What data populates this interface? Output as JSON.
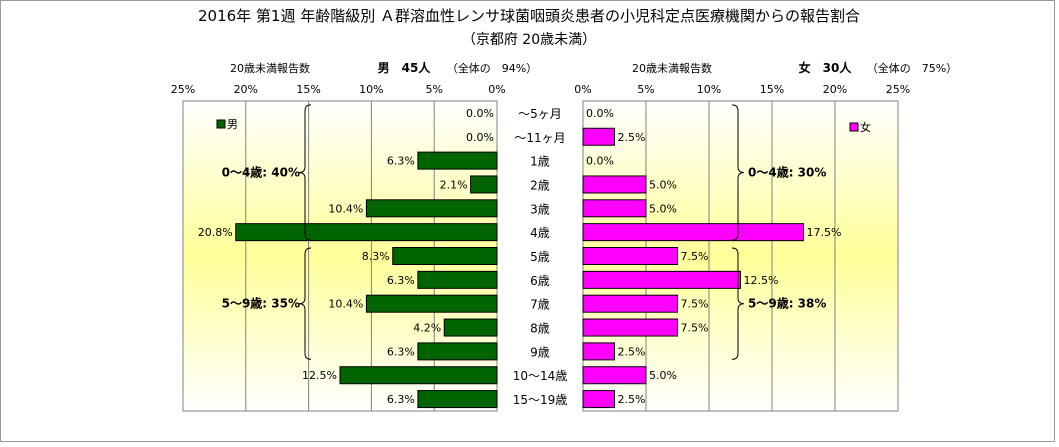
{
  "title": "2016年 第1週 年齢階級別 Ａ群溶血性レンサ球菌咽頭炎患者の小児科定点医療機関からの報告割合",
  "subtitle": "（京都府 20歳未満）",
  "chart_data": {
    "type": "bar",
    "orientation": "horizontal-diverging",
    "categories": [
      "～5ヶ月",
      "～11ヶ月",
      "1歳",
      "2歳",
      "3歳",
      "4歳",
      "5歳",
      "6歳",
      "7歳",
      "8歳",
      "9歳",
      "10～14歳",
      "15～19歳"
    ],
    "male": {
      "header_label": "20歳未満報告数",
      "header_count": "男　45人",
      "header_share": "（全体の　94%）",
      "legend": "男",
      "color": "#006400",
      "values": [
        0.0,
        0.0,
        6.3,
        2.1,
        10.4,
        20.8,
        8.3,
        6.3,
        10.4,
        4.2,
        6.3,
        12.5,
        6.3
      ],
      "labels": [
        "0.0%",
        "0.0%",
        "6.3%",
        "2.1%",
        "10.4%",
        "20.8%",
        "8.3%",
        "6.3%",
        "10.4%",
        "4.2%",
        "6.3%",
        "12.5%",
        "6.3%"
      ],
      "axis_ticks": [
        "25%",
        "20%",
        "15%",
        "10%",
        "5%",
        "0%"
      ],
      "group_labels": [
        "0～4歳: 40%",
        "5～9歳: 35%"
      ]
    },
    "female": {
      "header_label": "20歳未満報告数",
      "header_count": "女　30人",
      "header_share": "（全体の　75%）",
      "legend": "女",
      "color": "#ff00ff",
      "values": [
        0.0,
        2.5,
        0.0,
        5.0,
        5.0,
        17.5,
        7.5,
        12.5,
        7.5,
        7.5,
        2.5,
        5.0,
        2.5
      ],
      "labels": [
        "0.0%",
        "2.5%",
        "0.0%",
        "5.0%",
        "5.0%",
        "17.5%",
        "7.5%",
        "12.5%",
        "7.5%",
        "7.5%",
        "2.5%",
        "5.0%",
        "2.5%"
      ],
      "axis_ticks": [
        "0%",
        "5%",
        "10%",
        "15%",
        "20%",
        "25%"
      ],
      "group_labels": [
        "0～4歳: 30%",
        "5～9歳: 38%"
      ]
    },
    "xlim": [
      0,
      25
    ],
    "grid": true,
    "legend_position": "top-left (男), top-right (女)"
  }
}
